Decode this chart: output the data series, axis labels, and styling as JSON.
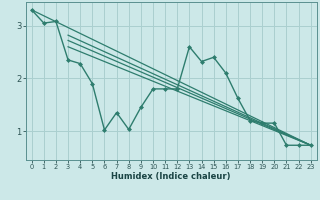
{
  "line_color": "#2e7d6e",
  "bg_color": "#cce8e8",
  "grid_color": "#aacfcf",
  "xlabel": "Humidex (Indice chaleur)",
  "xlim": [
    -0.5,
    23.5
  ],
  "ylim": [
    0.45,
    3.45
  ],
  "yticks": [
    1,
    2,
    3
  ],
  "xticks": [
    0,
    1,
    2,
    3,
    4,
    5,
    6,
    7,
    8,
    9,
    10,
    11,
    12,
    13,
    14,
    15,
    16,
    17,
    18,
    19,
    20,
    21,
    22,
    23
  ],
  "line1_x": [
    0,
    1,
    2,
    3,
    4,
    5,
    6,
    7,
    8,
    9,
    10,
    11,
    12,
    13,
    14,
    15,
    16,
    17,
    18,
    19,
    20,
    21,
    22,
    23
  ],
  "line1_y": [
    3.3,
    3.05,
    3.08,
    2.35,
    2.28,
    1.9,
    1.02,
    1.35,
    1.03,
    1.45,
    1.8,
    1.8,
    1.8,
    2.6,
    2.32,
    2.4,
    2.1,
    1.62,
    1.2,
    1.15,
    1.15,
    0.73,
    0.73,
    0.73
  ],
  "line2_x": [
    0,
    23
  ],
  "line2_y": [
    3.3,
    0.73
  ],
  "line3_x": [
    3,
    23
  ],
  "line3_y": [
    2.6,
    0.73
  ],
  "line4_x": [
    3,
    23
  ],
  "line4_y": [
    2.72,
    0.73
  ],
  "line5_x": [
    3,
    23
  ],
  "line5_y": [
    2.82,
    0.73
  ]
}
